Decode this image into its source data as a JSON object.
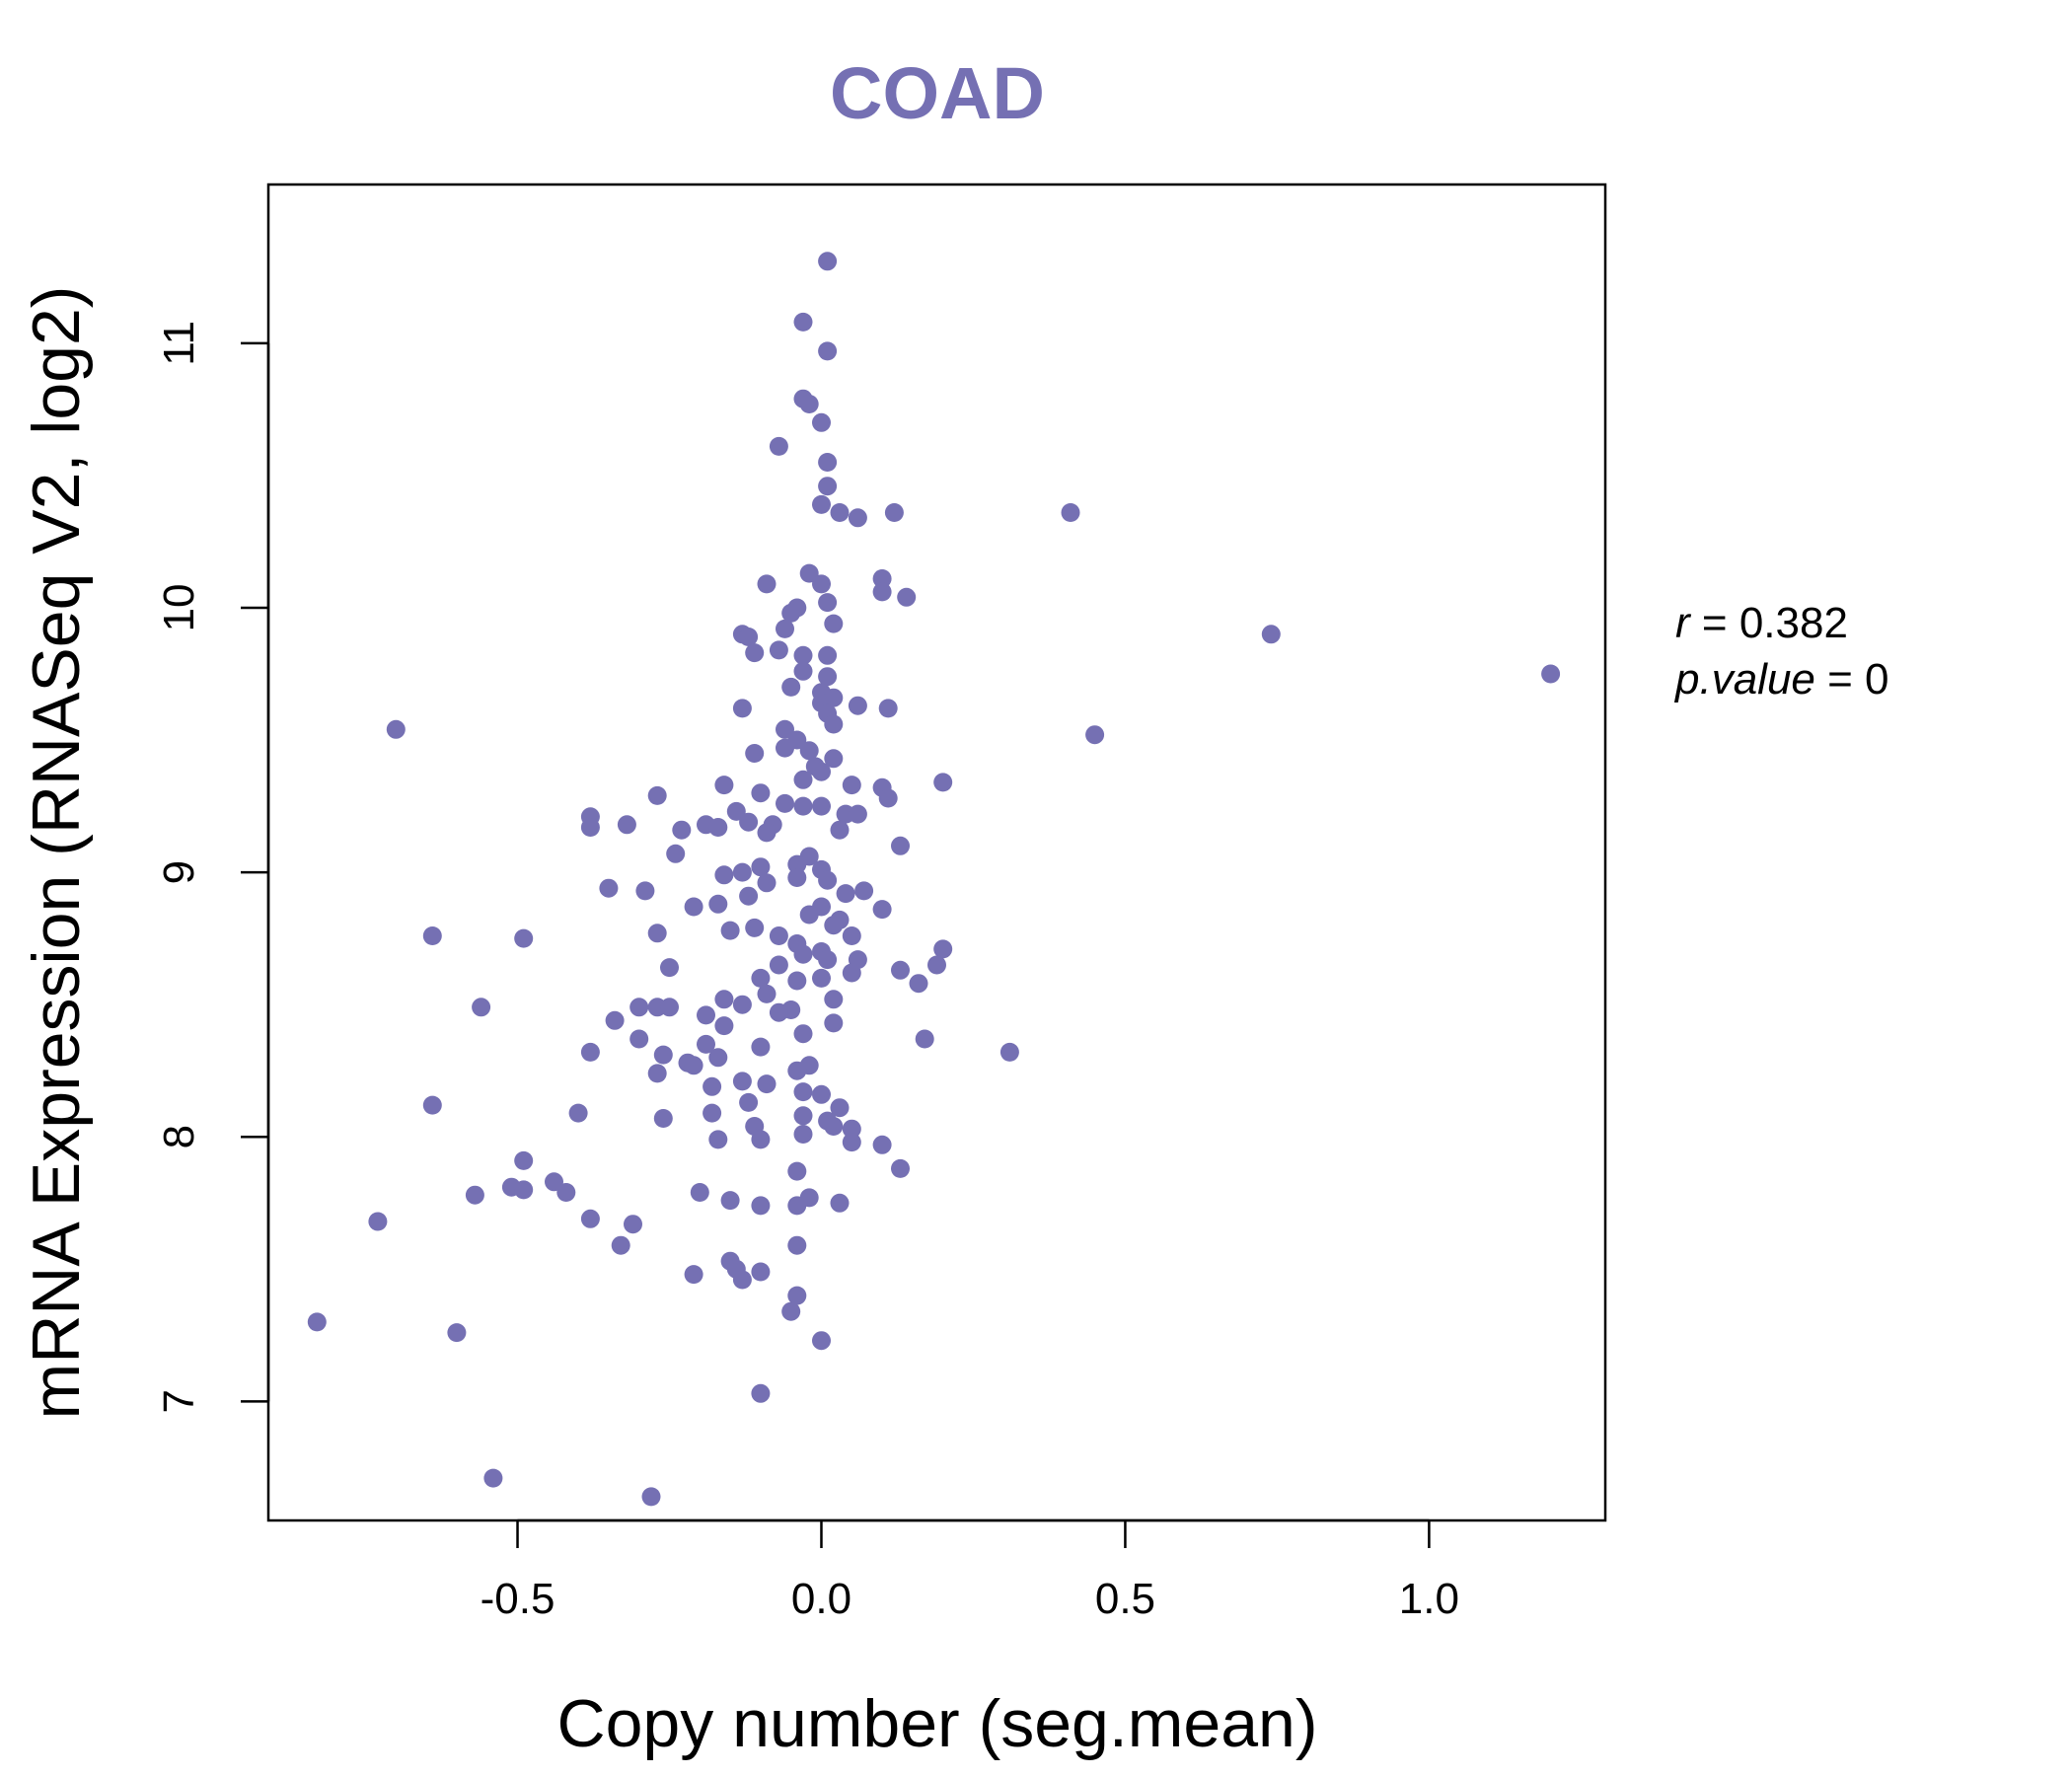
{
  "chart_data": {
    "type": "scatter",
    "title": "COAD",
    "xlabel": "Copy number (seg.mean)",
    "ylabel": "mRNA Expression (RNASeq V2, log2)",
    "xlim": [
      -0.91,
      1.29
    ],
    "ylim": [
      6.55,
      11.6
    ],
    "x_ticks": [
      -0.5,
      0.0,
      0.5,
      1.0
    ],
    "x_tick_labels": [
      "-0.5",
      "0.0",
      "0.5",
      "1.0"
    ],
    "y_ticks": [
      7,
      8,
      9,
      10,
      11
    ],
    "y_tick_labels": [
      "7",
      "8",
      "9",
      "10",
      "11"
    ],
    "grid": false,
    "legend": "none",
    "stats": {
      "r_label": "r",
      "r_value": "0.382",
      "p_label": "p.value",
      "p_value": "0"
    },
    "colors": {
      "points": "#7570b3",
      "title": "#7570b3",
      "axes": "#000000"
    },
    "points": [
      [
        0.01,
        11.31
      ],
      [
        -0.03,
        11.08
      ],
      [
        0.01,
        10.97
      ],
      [
        -0.03,
        10.79
      ],
      [
        -0.02,
        10.77
      ],
      [
        0.0,
        10.7
      ],
      [
        -0.07,
        10.61
      ],
      [
        0.01,
        10.55
      ],
      [
        0.01,
        10.46
      ],
      [
        0.0,
        10.39
      ],
      [
        0.03,
        10.36
      ],
      [
        0.12,
        10.36
      ],
      [
        0.06,
        10.34
      ],
      [
        0.41,
        10.36
      ],
      [
        -0.02,
        10.13
      ],
      [
        0.0,
        10.09
      ],
      [
        0.1,
        10.11
      ],
      [
        -0.09,
        10.09
      ],
      [
        0.1,
        10.06
      ],
      [
        0.14,
        10.04
      ],
      [
        0.01,
        10.02
      ],
      [
        -0.04,
        10.0
      ],
      [
        -0.05,
        9.98
      ],
      [
        0.02,
        9.94
      ],
      [
        -0.06,
        9.92
      ],
      [
        -0.13,
        9.9
      ],
      [
        -0.12,
        9.89
      ],
      [
        0.74,
        9.9
      ],
      [
        1.2,
        9.75
      ],
      [
        -0.03,
        9.82
      ],
      [
        0.01,
        9.82
      ],
      [
        -0.07,
        9.84
      ],
      [
        -0.11,
        9.83
      ],
      [
        -0.03,
        9.76
      ],
      [
        0.01,
        9.74
      ],
      [
        -0.05,
        9.7
      ],
      [
        0.0,
        9.68
      ],
      [
        0.02,
        9.66
      ],
      [
        0.0,
        9.64
      ],
      [
        0.06,
        9.63
      ],
      [
        0.11,
        9.62
      ],
      [
        -0.13,
        9.62
      ],
      [
        0.01,
        9.6
      ],
      [
        0.02,
        9.56
      ],
      [
        0.45,
        9.52
      ],
      [
        -0.7,
        9.54
      ],
      [
        -0.06,
        9.54
      ],
      [
        -0.04,
        9.5
      ],
      [
        -0.11,
        9.45
      ],
      [
        -0.06,
        9.47
      ],
      [
        -0.02,
        9.46
      ],
      [
        0.02,
        9.43
      ],
      [
        -0.01,
        9.4
      ],
      [
        0.0,
        9.38
      ],
      [
        -0.03,
        9.35
      ],
      [
        0.05,
        9.33
      ],
      [
        -0.16,
        9.33
      ],
      [
        0.1,
        9.32
      ],
      [
        0.2,
        9.34
      ],
      [
        0.11,
        9.28
      ],
      [
        -0.27,
        9.29
      ],
      [
        -0.1,
        9.3
      ],
      [
        -0.14,
        9.23
      ],
      [
        -0.06,
        9.26
      ],
      [
        -0.03,
        9.25
      ],
      [
        0.0,
        9.25
      ],
      [
        0.04,
        9.22
      ],
      [
        0.06,
        9.22
      ],
      [
        -0.38,
        9.21
      ],
      [
        -0.32,
        9.18
      ],
      [
        -0.38,
        9.17
      ],
      [
        -0.19,
        9.18
      ],
      [
        -0.17,
        9.17
      ],
      [
        -0.12,
        9.19
      ],
      [
        -0.08,
        9.18
      ],
      [
        -0.09,
        9.15
      ],
      [
        0.03,
        9.16
      ],
      [
        -0.23,
        9.16
      ],
      [
        0.13,
        9.1
      ],
      [
        -0.24,
        9.07
      ],
      [
        -0.02,
        9.06
      ],
      [
        -0.04,
        9.03
      ],
      [
        0.0,
        9.01
      ],
      [
        -0.1,
        9.02
      ],
      [
        -0.13,
        9.0
      ],
      [
        -0.16,
        8.99
      ],
      [
        -0.04,
        8.98
      ],
      [
        0.01,
        8.97
      ],
      [
        -0.35,
        8.94
      ],
      [
        -0.09,
        8.96
      ],
      [
        -0.29,
        8.93
      ],
      [
        0.07,
        8.93
      ],
      [
        0.04,
        8.92
      ],
      [
        -0.12,
        8.91
      ],
      [
        -0.21,
        8.87
      ],
      [
        -0.17,
        8.88
      ],
      [
        0.0,
        8.87
      ],
      [
        0.1,
        8.86
      ],
      [
        -0.02,
        8.84
      ],
      [
        0.03,
        8.82
      ],
      [
        0.02,
        8.8
      ],
      [
        -0.15,
        8.78
      ],
      [
        -0.11,
        8.79
      ],
      [
        -0.27,
        8.77
      ],
      [
        -0.64,
        8.76
      ],
      [
        -0.49,
        8.75
      ],
      [
        -0.07,
        8.76
      ],
      [
        -0.04,
        8.73
      ],
      [
        0.05,
        8.76
      ],
      [
        0.2,
        8.71
      ],
      [
        0.0,
        8.7
      ],
      [
        -0.03,
        8.69
      ],
      [
        0.01,
        8.67
      ],
      [
        0.06,
        8.67
      ],
      [
        0.19,
        8.65
      ],
      [
        -0.07,
        8.65
      ],
      [
        -0.25,
        8.64
      ],
      [
        0.13,
        8.63
      ],
      [
        0.05,
        8.62
      ],
      [
        0.0,
        8.6
      ],
      [
        -0.1,
        8.6
      ],
      [
        -0.04,
        8.59
      ],
      [
        0.16,
        8.58
      ],
      [
        -0.09,
        8.54
      ],
      [
        -0.16,
        8.52
      ],
      [
        0.02,
        8.52
      ],
      [
        -0.56,
        8.49
      ],
      [
        -0.3,
        8.49
      ],
      [
        -0.27,
        8.49
      ],
      [
        -0.25,
        8.49
      ],
      [
        -0.13,
        8.5
      ],
      [
        -0.05,
        8.48
      ],
      [
        -0.07,
        8.47
      ],
      [
        -0.19,
        8.46
      ],
      [
        -0.34,
        8.44
      ],
      [
        0.02,
        8.43
      ],
      [
        -0.16,
        8.42
      ],
      [
        -0.03,
        8.39
      ],
      [
        0.17,
        8.37
      ],
      [
        -0.3,
        8.37
      ],
      [
        -0.19,
        8.35
      ],
      [
        -0.1,
        8.34
      ],
      [
        -0.38,
        8.32
      ],
      [
        -0.26,
        8.31
      ],
      [
        0.31,
        8.32
      ],
      [
        -0.17,
        8.3
      ],
      [
        -0.22,
        8.28
      ],
      [
        -0.21,
        8.27
      ],
      [
        -0.02,
        8.27
      ],
      [
        -0.04,
        8.25
      ],
      [
        -0.27,
        8.24
      ],
      [
        -0.09,
        8.2
      ],
      [
        -0.13,
        8.21
      ],
      [
        -0.18,
        8.19
      ],
      [
        -0.03,
        8.17
      ],
      [
        0.0,
        8.16
      ],
      [
        -0.12,
        8.13
      ],
      [
        0.03,
        8.11
      ],
      [
        -0.64,
        8.12
      ],
      [
        -0.4,
        8.09
      ],
      [
        -0.18,
        8.09
      ],
      [
        -0.26,
        8.07
      ],
      [
        -0.03,
        8.08
      ],
      [
        0.01,
        8.06
      ],
      [
        0.02,
        8.04
      ],
      [
        0.05,
        8.03
      ],
      [
        -0.11,
        8.04
      ],
      [
        -0.03,
        8.01
      ],
      [
        -0.1,
        7.99
      ],
      [
        -0.17,
        7.99
      ],
      [
        0.05,
        7.98
      ],
      [
        0.1,
        7.97
      ],
      [
        -0.49,
        7.91
      ],
      [
        0.13,
        7.88
      ],
      [
        -0.04,
        7.87
      ],
      [
        -0.44,
        7.83
      ],
      [
        -0.51,
        7.81
      ],
      [
        -0.49,
        7.8
      ],
      [
        -0.42,
        7.79
      ],
      [
        -0.57,
        7.78
      ],
      [
        -0.2,
        7.79
      ],
      [
        -0.02,
        7.77
      ],
      [
        -0.15,
        7.76
      ],
      [
        -0.1,
        7.74
      ],
      [
        -0.04,
        7.74
      ],
      [
        0.03,
        7.75
      ],
      [
        -0.38,
        7.69
      ],
      [
        -0.73,
        7.68
      ],
      [
        -0.31,
        7.67
      ],
      [
        -0.33,
        7.59
      ],
      [
        -0.04,
        7.59
      ],
      [
        -0.15,
        7.53
      ],
      [
        -0.14,
        7.5
      ],
      [
        -0.1,
        7.49
      ],
      [
        -0.21,
        7.48
      ],
      [
        -0.13,
        7.46
      ],
      [
        -0.04,
        7.4
      ],
      [
        -0.05,
        7.34
      ],
      [
        -0.83,
        7.3
      ],
      [
        -0.6,
        7.26
      ],
      [
        0.0,
        7.23
      ],
      [
        -0.1,
        7.03
      ],
      [
        -0.54,
        6.71
      ],
      [
        -0.28,
        6.64
      ]
    ]
  }
}
